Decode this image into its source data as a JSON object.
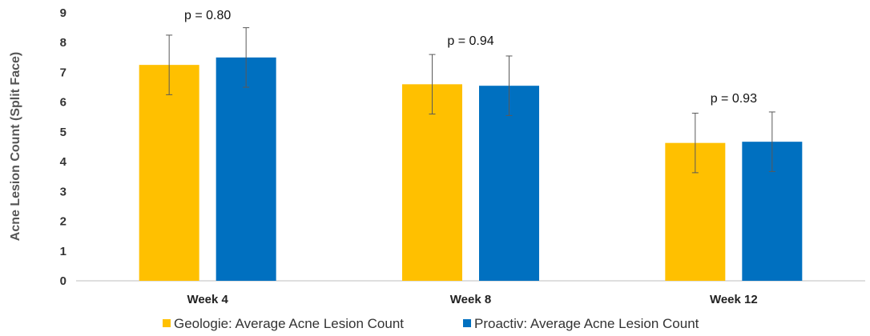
{
  "chart_data": {
    "type": "bar",
    "categories": [
      "Week 4",
      "Week 8",
      "Week 12"
    ],
    "series": [
      {
        "name": "Geologie: Average Acne Lesion Count",
        "values": [
          7.25,
          6.6,
          4.63
        ],
        "error": [
          1.0,
          1.0,
          1.0
        ],
        "color": "#FFC000"
      },
      {
        "name": "Proactiv: Average Acne Lesion Count",
        "values": [
          7.5,
          6.55,
          4.67
        ],
        "error": [
          1.0,
          1.0,
          1.0
        ],
        "color": "#0070C0"
      }
    ],
    "annotations": [
      "p = 0.80",
      "p = 0.94",
      "p = 0.93"
    ],
    "ylabel": "Acne Lesion Count (Split Face)",
    "ylim": [
      0,
      9
    ],
    "yticks": [
      "0",
      "1",
      "2",
      "3",
      "4",
      "5",
      "6",
      "7",
      "8",
      "9"
    ],
    "grid": false,
    "legend": "bottom"
  }
}
